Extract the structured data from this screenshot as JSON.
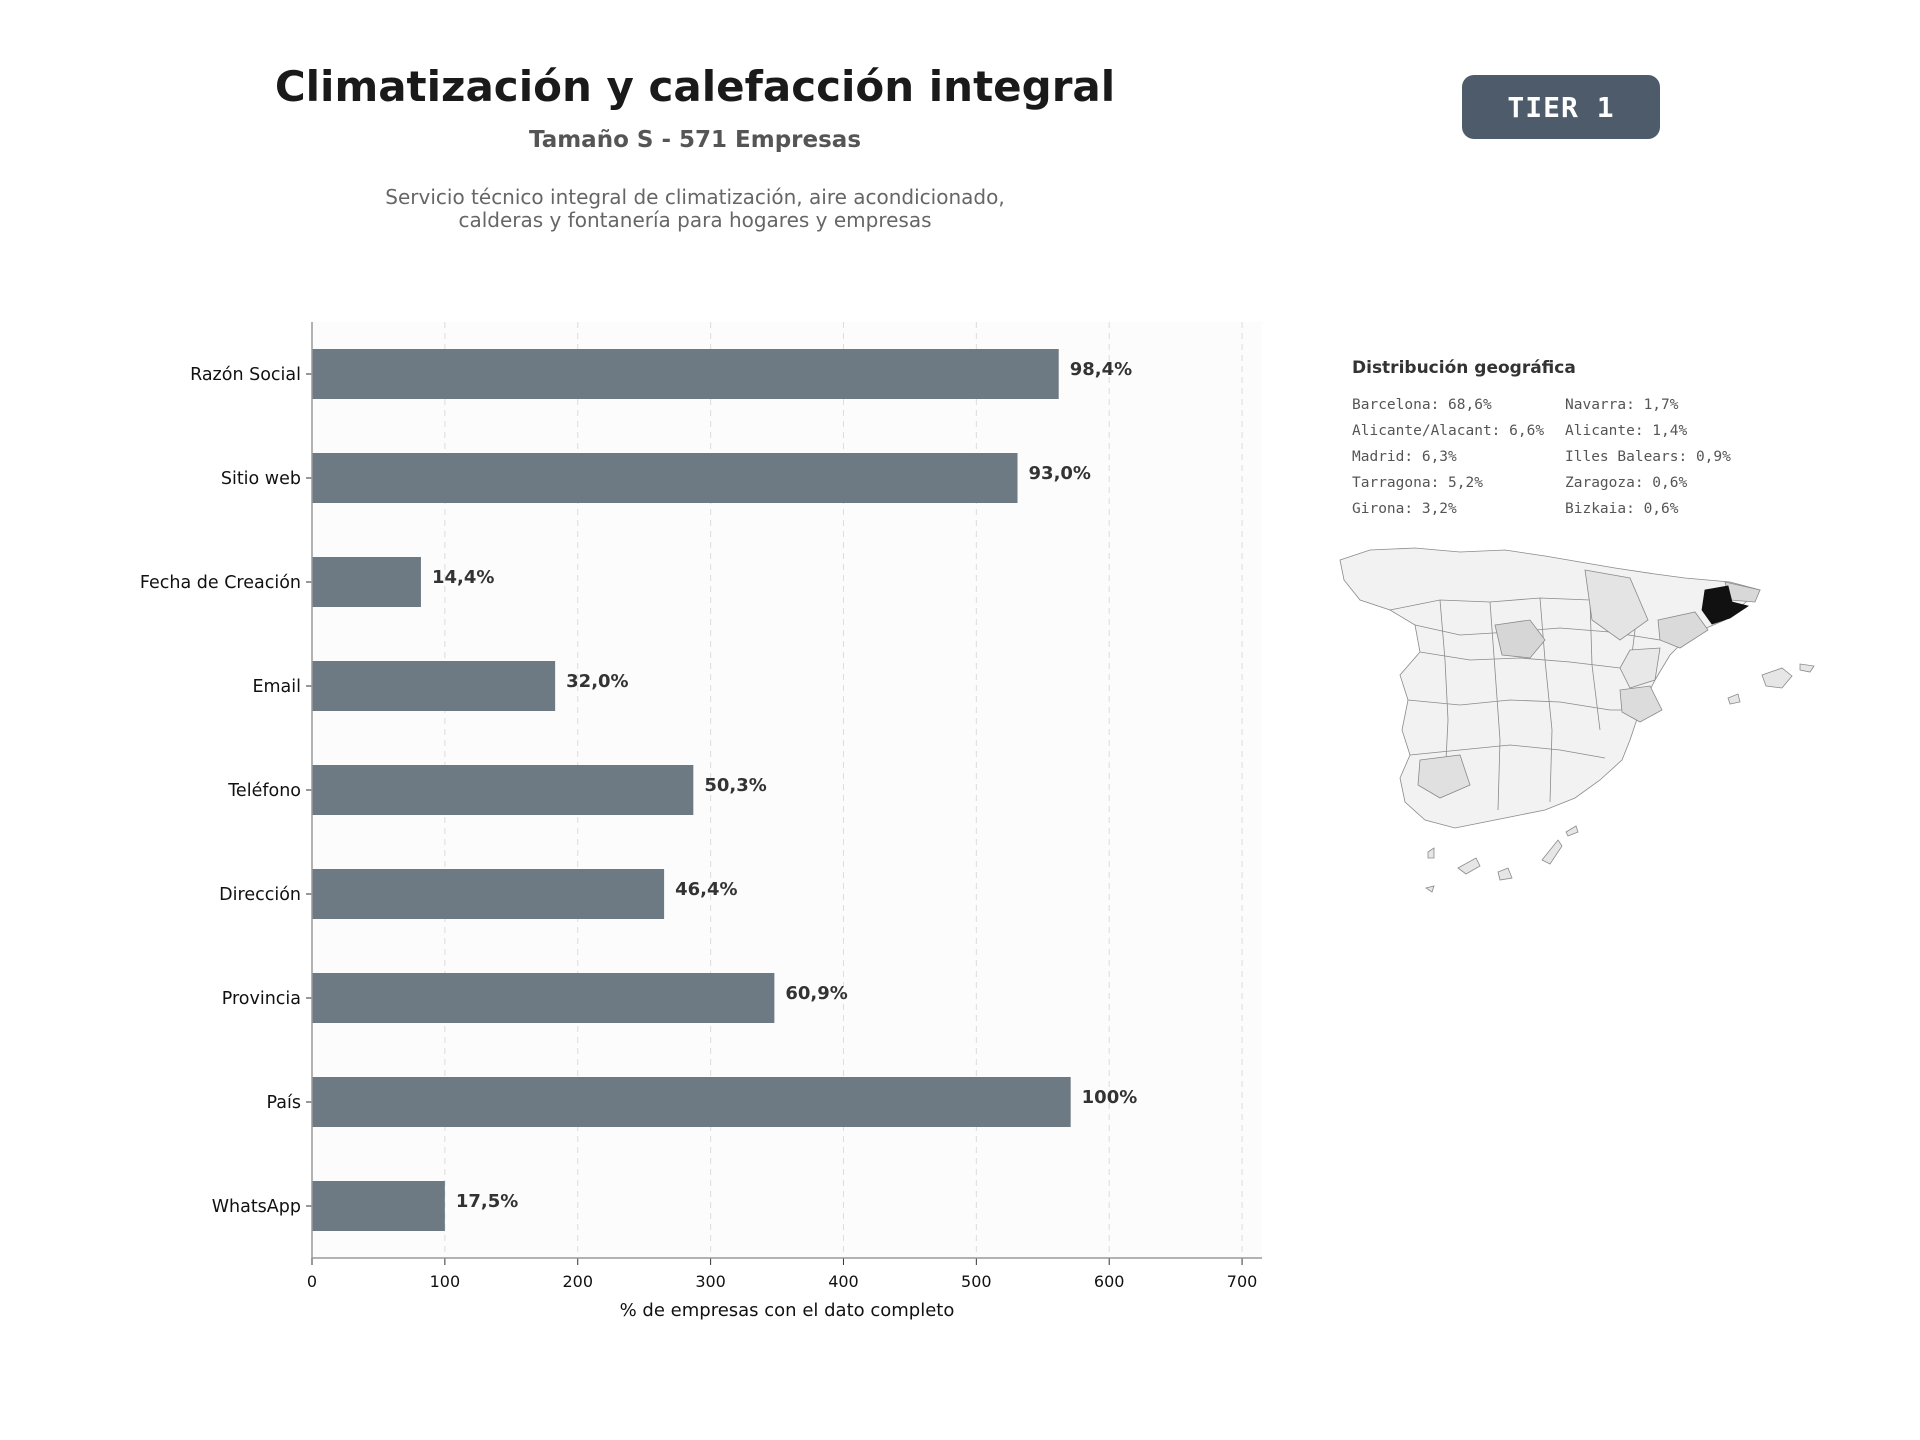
{
  "header": {
    "title": "Climatización y calefacción integral",
    "subtitle": "Tamaño S - 571 Empresas",
    "description_lines": [
      "Servicio técnico integral de climatización, aire acondicionado,",
      "calderas y fontanería para hogares y empresas"
    ],
    "tier_badge": "TIER 1",
    "tier_color": "#4d5b6a"
  },
  "chart_data": {
    "type": "bar",
    "orientation": "horizontal",
    "categories": [
      "Razón Social",
      "Sitio web",
      "Fecha de Creación",
      "Email",
      "Teléfono",
      "Dirección",
      "Provincia",
      "País",
      "WhatsApp"
    ],
    "values": [
      562,
      531,
      82,
      183,
      287,
      265,
      348,
      571,
      100
    ],
    "data_labels": [
      "98,4%",
      "93,0%",
      "14,4%",
      "32,0%",
      "50,3%",
      "46,4%",
      "60,9%",
      "100%",
      "17,5%"
    ],
    "xlabel": "% de empresas con el dato completo",
    "xlim": [
      0,
      715
    ],
    "xticks": [
      0,
      100,
      200,
      300,
      400,
      500,
      600,
      700
    ],
    "grid": "vertical-dashed",
    "bar_color": "#6e7a83"
  },
  "geo": {
    "title": "Distribución geográfica",
    "items": [
      "Barcelona: 68,6%",
      "Alicante/Alacant: 6,6%",
      "Madrid: 6,3%",
      "Tarragona: 5,2%",
      "Girona: 3,2%",
      "Navarra: 1,7%",
      "Alicante: 1,4%",
      "Illes Balears: 0,9%",
      "Zaragoza: 0,6%",
      "Bizkaia: 0,6%"
    ],
    "highlight_color": "#111111"
  }
}
